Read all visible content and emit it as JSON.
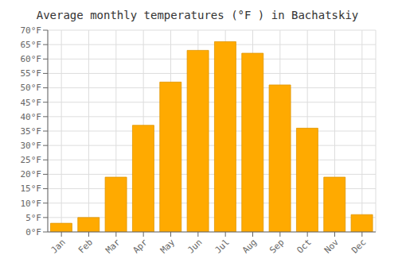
{
  "chart_data": {
    "type": "bar",
    "title": "Average monthly temperatures (°F ) in Bachatskiy",
    "categories": [
      "Jan",
      "Feb",
      "Mar",
      "Apr",
      "May",
      "Jun",
      "Jul",
      "Aug",
      "Sep",
      "Oct",
      "Nov",
      "Dec"
    ],
    "values": [
      3,
      5,
      19,
      37,
      52,
      63,
      66,
      62,
      51,
      36,
      19,
      6
    ],
    "color": "#FFAA00",
    "ylim": [
      0,
      70
    ],
    "yticks": [
      {
        "value": 0,
        "label": "0°F"
      },
      {
        "value": 5,
        "label": "5°F"
      },
      {
        "value": 10,
        "label": "10°F"
      },
      {
        "value": 15,
        "label": "15°F"
      },
      {
        "value": 20,
        "label": "20°F"
      },
      {
        "value": 25,
        "label": "25°F"
      },
      {
        "value": 30,
        "label": "30°F"
      },
      {
        "value": 35,
        "label": "35°F"
      },
      {
        "value": 40,
        "label": "40°F"
      },
      {
        "value": 45,
        "label": "45°F"
      },
      {
        "value": 50,
        "label": "50°F"
      },
      {
        "value": 55,
        "label": "55°F"
      },
      {
        "value": 60,
        "label": "60°F"
      },
      {
        "value": 65,
        "label": "65°F"
      },
      {
        "value": 70,
        "label": "70°F"
      }
    ],
    "grid": true
  }
}
